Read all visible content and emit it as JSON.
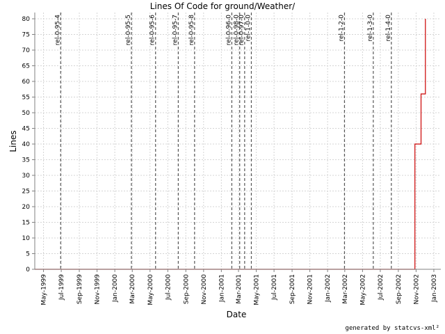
{
  "chart_data": {
    "type": "line",
    "title": "Lines Of Code for ground/Weather/",
    "xlabel": "Date",
    "ylabel": "Lines",
    "footer": "generated by statcvs-xml²",
    "ylim": [
      0,
      82
    ],
    "xlim": [
      "1999-04-01",
      "2003-01-25"
    ],
    "y_ticks": [
      0,
      5,
      10,
      15,
      20,
      25,
      30,
      35,
      40,
      45,
      50,
      55,
      60,
      65,
      70,
      75,
      80
    ],
    "x_ticks": [
      {
        "label": "May-1999",
        "date": "1999-05-01"
      },
      {
        "label": "Jul-1999",
        "date": "1999-07-01"
      },
      {
        "label": "Sep-1999",
        "date": "1999-09-01"
      },
      {
        "label": "Nov-1999",
        "date": "1999-11-01"
      },
      {
        "label": "Jan-2000",
        "date": "2000-01-01"
      },
      {
        "label": "Mar-2000",
        "date": "2000-03-01"
      },
      {
        "label": "May-2000",
        "date": "2000-05-01"
      },
      {
        "label": "Jul-2000",
        "date": "2000-07-01"
      },
      {
        "label": "Sep-2000",
        "date": "2000-09-01"
      },
      {
        "label": "Nov-2000",
        "date": "2000-11-01"
      },
      {
        "label": "Jan-2001",
        "date": "2001-01-01"
      },
      {
        "label": "Mar-2001",
        "date": "2001-03-01"
      },
      {
        "label": "May-2001",
        "date": "2001-05-01"
      },
      {
        "label": "Jul-2001",
        "date": "2001-07-01"
      },
      {
        "label": "Sep-2001",
        "date": "2001-09-01"
      },
      {
        "label": "Nov-2001",
        "date": "2001-11-01"
      },
      {
        "label": "Jan-2002",
        "date": "2002-01-01"
      },
      {
        "label": "Mar-2002",
        "date": "2002-03-01"
      },
      {
        "label": "May-2002",
        "date": "2002-05-01"
      },
      {
        "label": "Jul-2002",
        "date": "2002-07-01"
      },
      {
        "label": "Sep-2002",
        "date": "2002-09-01"
      },
      {
        "label": "Nov-2002",
        "date": "2002-11-01"
      },
      {
        "label": "Jan-2003",
        "date": "2003-01-01"
      }
    ],
    "markers": [
      {
        "label": "rel-0-95-4",
        "date": "1999-06-29"
      },
      {
        "label": "rel-0-95-5",
        "date": "2000-02-27"
      },
      {
        "label": "rel-0-95-6",
        "date": "2000-05-20"
      },
      {
        "label": "rel-0-95-7",
        "date": "2000-08-06"
      },
      {
        "label": "rel-0-95-8",
        "date": "2000-10-01"
      },
      {
        "label": "rel-0-96-0",
        "date": "2001-02-06"
      },
      {
        "label": "rel-0-98-0",
        "date": "2001-03-05"
      },
      {
        "label": "rel-0-97-0",
        "date": "2001-03-22"
      },
      {
        "label": "rel-1-0-0",
        "date": "2001-04-14"
      },
      {
        "label": "rel-1-2-0",
        "date": "2002-02-28"
      },
      {
        "label": "rel-1-3-0",
        "date": "2002-06-07"
      },
      {
        "label": "rel-1-4-0",
        "date": "2002-08-08"
      }
    ],
    "series": [
      {
        "color": "#cc0000",
        "x": [
          "1999-04-01",
          "2002-10-28",
          "2002-10-28",
          "2002-11-18",
          "2002-11-18",
          "2002-12-03",
          "2002-12-03"
        ],
        "y": [
          0,
          0,
          40,
          40,
          56,
          56,
          80
        ]
      }
    ],
    "grid": true,
    "colors": {
      "series": "#cc0000",
      "marker": "#555555",
      "grid": "#d4d4d4",
      "axis": "#808080"
    }
  }
}
